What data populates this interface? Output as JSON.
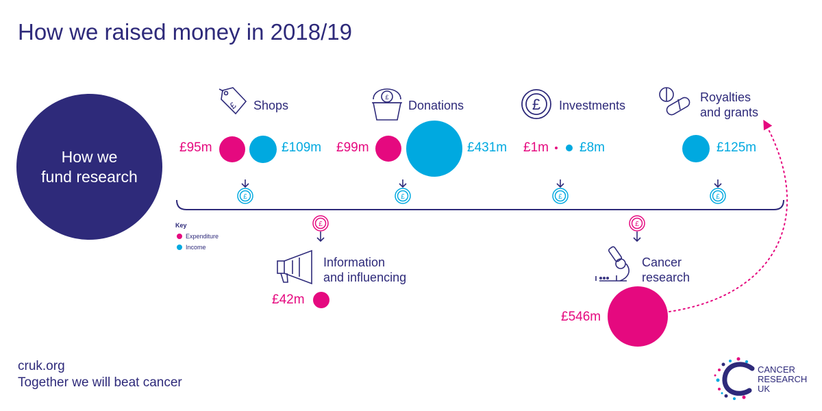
{
  "title": "How we raised money in 2018/19",
  "hub": "How we\nfund research",
  "colors": {
    "navy": "#2e2a7a",
    "expenditure": "#e5097f",
    "income": "#00a9e0"
  },
  "sources": [
    {
      "label": "Shops",
      "icon": "price-tag-pound-icon",
      "expenditure": "£95m",
      "income": "£109m"
    },
    {
      "label": "Donations",
      "icon": "donation-bucket-icon",
      "expenditure": "£99m",
      "income": "£431m"
    },
    {
      "label": "Investments",
      "icon": "pound-coin-icon",
      "expenditure": "£1m",
      "income": "£8m"
    },
    {
      "label": "Royalties\nand grants",
      "icon": "pills-icon",
      "income": "£125m"
    }
  ],
  "uses": [
    {
      "label": "Information\nand influencing",
      "icon": "megaphone-icon",
      "expenditure": "£42m"
    },
    {
      "label": "Cancer\nresearch",
      "icon": "microscope-icon",
      "expenditure": "£546m"
    }
  ],
  "key": {
    "heading": "Key",
    "expenditure": "Expenditure",
    "income": "Income"
  },
  "footer": {
    "url": "cruk.org",
    "tagline": "Together we will beat cancer"
  },
  "logo": {
    "text": "CANCER\nRESEARCH\nUK"
  }
}
